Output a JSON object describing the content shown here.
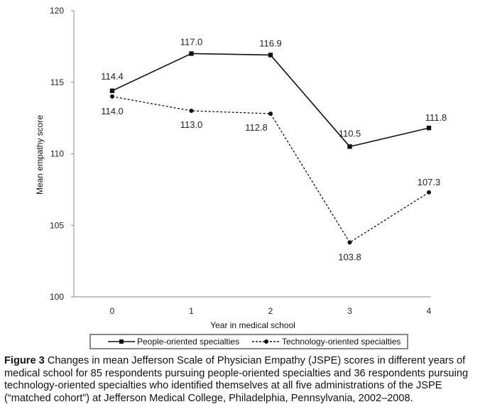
{
  "chart_data": {
    "type": "line",
    "xlabel": "Year in medical school",
    "ylabel": "Mean empathy score",
    "x": [
      0,
      1,
      2,
      3,
      4
    ],
    "ylim": [
      100,
      120
    ],
    "yticks": [
      100,
      105,
      110,
      115,
      120
    ],
    "grid": false,
    "legend_position": "bottom",
    "series": [
      {
        "name": "People-oriented specialties",
        "values": [
          114.4,
          117.0,
          116.9,
          110.5,
          111.8
        ],
        "labels": [
          "114.4",
          "117.0",
          "116.9",
          "110.5",
          "111.8"
        ],
        "line_style": "solid",
        "marker": "square"
      },
      {
        "name": "Technology-oriented specialties",
        "values": [
          114.0,
          113.0,
          112.8,
          103.8,
          107.3
        ],
        "labels": [
          "114.0",
          "113.0",
          "112.8",
          "103.8",
          "107.3"
        ],
        "line_style": "dashed",
        "marker": "circle"
      }
    ]
  },
  "caption": {
    "figure_label": "Figure 3",
    "text": " Changes in mean Jefferson Scale of Physician Empathy (JSPE) scores in different years of medical school for 85 respondents pursuing people-oriented specialties and 36 respondents pursuing technology-oriented specialties who identified themselves at all five administrations of the JSPE (“matched cohort”) at Jefferson Medical College, Philadelphia, Pennsylvania, 2002–2008."
  }
}
